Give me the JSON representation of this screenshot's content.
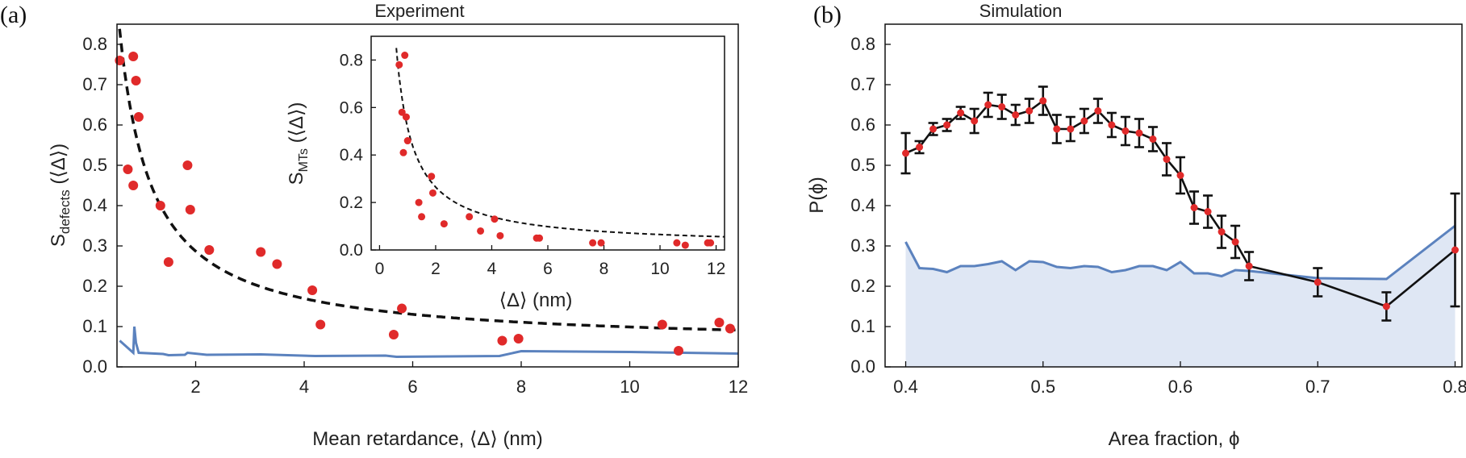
{
  "figure": {
    "panel_labels": [
      "(a)",
      "(b)"
    ]
  },
  "colors": {
    "points": "#e02a2a",
    "fit": "#111111",
    "baseline_line": "#5b82be",
    "baseline_fill": "#dfe7f4",
    "errorbar": "#111111"
  },
  "chart_data": [
    {
      "id": "a-main",
      "type": "scatter",
      "title": "Experiment",
      "xlabel": "Mean retardance, ⟨Δ⟩ (nm)",
      "ylabel": "S_defects (⟨Δ⟩)",
      "ylabel_parts": {
        "s": "S",
        "sub": "defects",
        "rest": " (⟨Δ⟩)"
      },
      "xlim": [
        0.55,
        12
      ],
      "ylim": [
        0,
        0.85
      ],
      "xticks": [
        2,
        4,
        6,
        8,
        10,
        12
      ],
      "yticks": [
        0.0,
        0.1,
        0.2,
        0.3,
        0.4,
        0.5,
        0.6,
        0.7,
        0.8
      ],
      "points": [
        [
          0.6,
          0.76
        ],
        [
          0.75,
          0.49
        ],
        [
          0.85,
          0.77
        ],
        [
          0.85,
          0.45
        ],
        [
          0.9,
          0.71
        ],
        [
          0.95,
          0.62
        ],
        [
          1.35,
          0.4
        ],
        [
          1.5,
          0.26
        ],
        [
          1.85,
          0.5
        ],
        [
          1.9,
          0.39
        ],
        [
          2.25,
          0.29
        ],
        [
          3.2,
          0.285
        ],
        [
          3.5,
          0.255
        ],
        [
          4.15,
          0.19
        ],
        [
          4.3,
          0.105
        ],
        [
          5.65,
          0.08
        ],
        [
          5.8,
          0.145
        ],
        [
          7.65,
          0.065
        ],
        [
          7.95,
          0.07
        ],
        [
          10.6,
          0.105
        ],
        [
          10.9,
          0.04
        ],
        [
          11.65,
          0.11
        ],
        [
          11.85,
          0.095
        ]
      ],
      "fit": {
        "style": "dashed",
        "a": 0.47,
        "b": 0.052
      },
      "baseline": [
        [
          0.6,
          0.065
        ],
        [
          0.85,
          0.035
        ],
        [
          0.87,
          0.1
        ],
        [
          0.9,
          0.06
        ],
        [
          0.95,
          0.035
        ],
        [
          1.4,
          0.032
        ],
        [
          1.5,
          0.029
        ],
        [
          1.8,
          0.03
        ],
        [
          1.85,
          0.035
        ],
        [
          2.2,
          0.03
        ],
        [
          3.2,
          0.031
        ],
        [
          4.2,
          0.027
        ],
        [
          5.5,
          0.028
        ],
        [
          5.7,
          0.025
        ],
        [
          7.6,
          0.027
        ],
        [
          8.0,
          0.039
        ],
        [
          10.0,
          0.037
        ],
        [
          12.0,
          0.033
        ]
      ]
    },
    {
      "id": "a-inset",
      "type": "scatter",
      "xlabel": "⟨Δ⟩ (nm)",
      "ylabel": "S_MTs (⟨Δ⟩)",
      "ylabel_parts": {
        "s": "S",
        "sub": "MTs",
        "rest": " (⟨Δ⟩)"
      },
      "xlim": [
        -0.3,
        12.3
      ],
      "ylim": [
        0,
        0.9
      ],
      "xticks": [
        0,
        2,
        4,
        6,
        8,
        10,
        12
      ],
      "yticks": [
        0.0,
        0.2,
        0.4,
        0.6,
        0.8
      ],
      "points": [
        [
          0.7,
          0.78
        ],
        [
          0.8,
          0.58
        ],
        [
          0.85,
          0.41
        ],
        [
          0.9,
          0.82
        ],
        [
          0.95,
          0.56
        ],
        [
          1.0,
          0.46
        ],
        [
          1.4,
          0.2
        ],
        [
          1.5,
          0.14
        ],
        [
          1.85,
          0.31
        ],
        [
          1.9,
          0.24
        ],
        [
          2.3,
          0.11
        ],
        [
          3.2,
          0.14
        ],
        [
          3.6,
          0.08
        ],
        [
          4.1,
          0.13
        ],
        [
          4.3,
          0.06
        ],
        [
          5.6,
          0.05
        ],
        [
          5.7,
          0.05
        ],
        [
          7.6,
          0.03
        ],
        [
          7.9,
          0.03
        ],
        [
          10.6,
          0.03
        ],
        [
          10.9,
          0.02
        ],
        [
          11.7,
          0.03
        ],
        [
          11.8,
          0.03
        ]
      ],
      "fit": {
        "style": "dashed",
        "a": 0.5,
        "b": 0.015
      }
    },
    {
      "id": "b",
      "type": "line",
      "title": "Simulation",
      "xlabel": "Area fraction, ϕ",
      "ylabel": "P(ϕ)",
      "xlim": [
        0.385,
        0.805
      ],
      "ylim": [
        0,
        0.85
      ],
      "xticks": [
        0.4,
        0.5,
        0.6,
        0.7,
        0.8
      ],
      "yticks": [
        0.0,
        0.1,
        0.2,
        0.3,
        0.4,
        0.5,
        0.6,
        0.7,
        0.8
      ],
      "series": [
        {
          "kind": "points-with-errorbars",
          "x": [
            0.4,
            0.41,
            0.42,
            0.43,
            0.44,
            0.45,
            0.46,
            0.47,
            0.48,
            0.49,
            0.5,
            0.51,
            0.52,
            0.53,
            0.54,
            0.55,
            0.56,
            0.57,
            0.58,
            0.59,
            0.6,
            0.61,
            0.62,
            0.63,
            0.64,
            0.65,
            0.7,
            0.75,
            0.8
          ],
          "y": [
            0.53,
            0.545,
            0.59,
            0.6,
            0.63,
            0.61,
            0.65,
            0.645,
            0.625,
            0.635,
            0.66,
            0.59,
            0.59,
            0.61,
            0.635,
            0.6,
            0.585,
            0.58,
            0.565,
            0.515,
            0.475,
            0.395,
            0.385,
            0.335,
            0.31,
            0.25,
            0.21,
            0.15,
            0.29
          ],
          "err": [
            0.05,
            0.015,
            0.015,
            0.015,
            0.015,
            0.03,
            0.03,
            0.03,
            0.025,
            0.03,
            0.035,
            0.035,
            0.03,
            0.03,
            0.03,
            0.03,
            0.035,
            0.035,
            0.03,
            0.04,
            0.045,
            0.04,
            0.04,
            0.04,
            0.04,
            0.035,
            0.035,
            0.035,
            0.14
          ]
        },
        {
          "kind": "filled-baseline",
          "x": [
            0.4,
            0.41,
            0.42,
            0.43,
            0.44,
            0.45,
            0.46,
            0.47,
            0.48,
            0.49,
            0.5,
            0.51,
            0.52,
            0.53,
            0.54,
            0.55,
            0.56,
            0.57,
            0.58,
            0.59,
            0.6,
            0.61,
            0.62,
            0.63,
            0.64,
            0.65,
            0.7,
            0.75,
            0.8
          ],
          "y": [
            0.31,
            0.245,
            0.243,
            0.235,
            0.25,
            0.25,
            0.255,
            0.262,
            0.24,
            0.262,
            0.26,
            0.248,
            0.245,
            0.25,
            0.248,
            0.235,
            0.24,
            0.25,
            0.25,
            0.24,
            0.26,
            0.232,
            0.232,
            0.225,
            0.24,
            0.238,
            0.22,
            0.218,
            0.35
          ]
        }
      ]
    }
  ]
}
